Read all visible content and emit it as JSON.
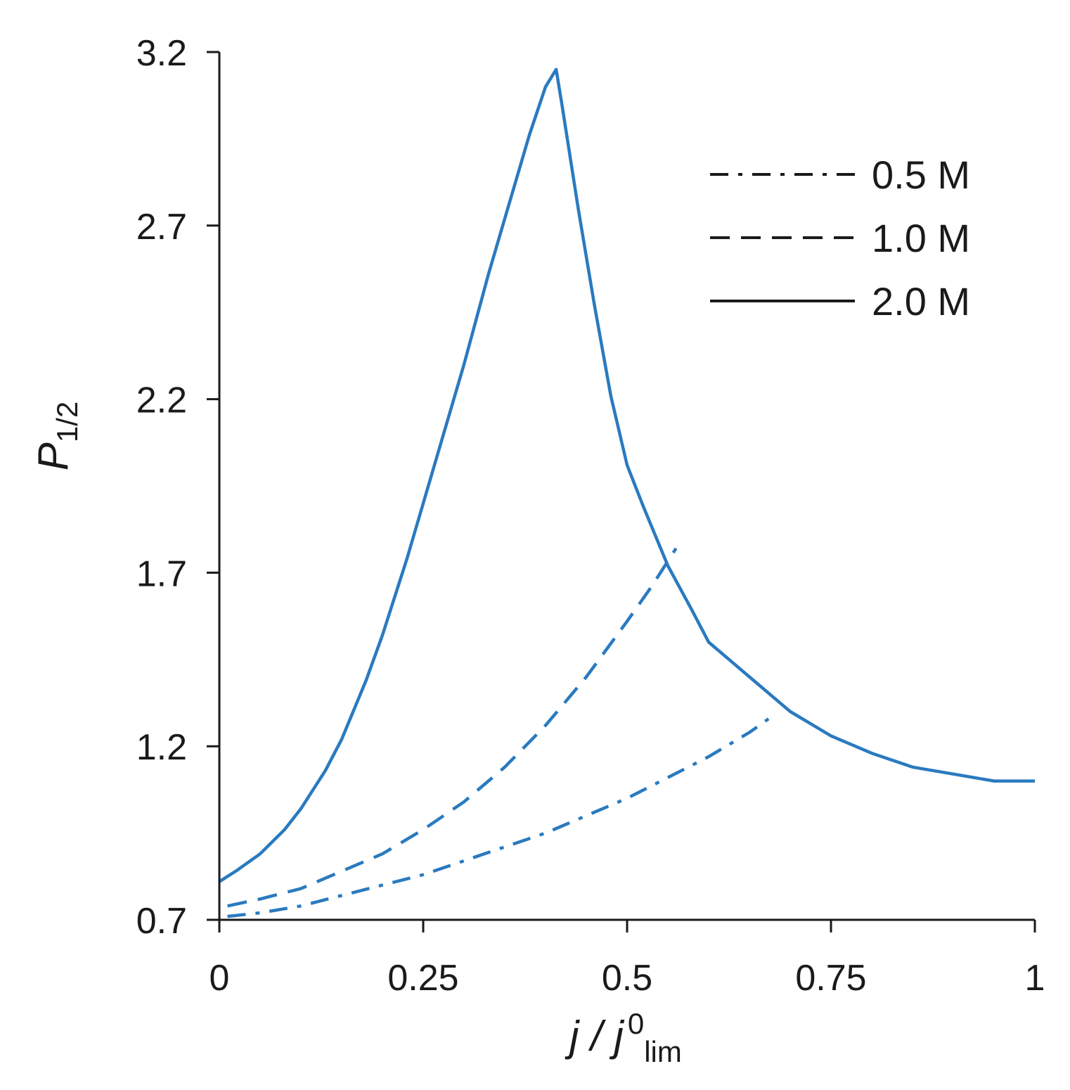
{
  "chart_data": {
    "type": "line",
    "xlabel": {
      "main": "j / j",
      "sup": "0",
      "sub": "lim"
    },
    "ylabel": {
      "main": "P",
      "sub": "1/2"
    },
    "xlim": [
      0,
      1
    ],
    "ylim": [
      0.7,
      3.2
    ],
    "xticks": [
      {
        "value": 0,
        "label": "0"
      },
      {
        "value": 0.25,
        "label": "0.25"
      },
      {
        "value": 0.5,
        "label": "0.5"
      },
      {
        "value": 0.75,
        "label": "0.75"
      },
      {
        "value": 1,
        "label": "1"
      }
    ],
    "yticks": [
      {
        "value": 0.7,
        "label": "0.7"
      },
      {
        "value": 1.2,
        "label": "1.2"
      },
      {
        "value": 1.7,
        "label": "1.7"
      },
      {
        "value": 2.2,
        "label": "2.2"
      },
      {
        "value": 2.7,
        "label": "2.7"
      },
      {
        "value": 3.2,
        "label": "3.2"
      }
    ],
    "grid": false,
    "legend_position": "top-right",
    "series_color": "#2a7abf",
    "legend_line_color": "#1a1a1a",
    "series": [
      {
        "name": "0.5 M",
        "style": "dashdot",
        "x": [
          0.01,
          0.05,
          0.1,
          0.15,
          0.2,
          0.25,
          0.3,
          0.35,
          0.4,
          0.45,
          0.5,
          0.55,
          0.6,
          0.65,
          0.68
        ],
        "y": [
          0.71,
          0.72,
          0.74,
          0.77,
          0.8,
          0.83,
          0.87,
          0.91,
          0.95,
          1.0,
          1.05,
          1.11,
          1.17,
          1.24,
          1.29
        ]
      },
      {
        "name": "1.0 M",
        "style": "dashed",
        "x": [
          0.01,
          0.05,
          0.1,
          0.15,
          0.2,
          0.25,
          0.3,
          0.35,
          0.4,
          0.45,
          0.5,
          0.53,
          0.56
        ],
        "y": [
          0.74,
          0.76,
          0.79,
          0.84,
          0.89,
          0.96,
          1.04,
          1.14,
          1.26,
          1.4,
          1.56,
          1.66,
          1.77
        ]
      },
      {
        "name": "2.0 M",
        "style": "solid",
        "x": [
          0,
          0.02,
          0.05,
          0.08,
          0.1,
          0.13,
          0.15,
          0.18,
          0.2,
          0.23,
          0.25,
          0.28,
          0.3,
          0.33,
          0.35,
          0.38,
          0.4,
          0.413,
          0.42,
          0.44,
          0.46,
          0.48,
          0.5,
          0.52,
          0.55,
          0.58,
          0.6,
          0.65,
          0.7,
          0.75,
          0.8,
          0.85,
          0.9,
          0.95,
          1.0
        ],
        "y": [
          0.81,
          0.84,
          0.89,
          0.96,
          1.02,
          1.13,
          1.22,
          1.39,
          1.52,
          1.74,
          1.9,
          2.14,
          2.3,
          2.56,
          2.72,
          2.96,
          3.1,
          3.15,
          3.05,
          2.75,
          2.47,
          2.21,
          2.01,
          1.89,
          1.72,
          1.59,
          1.5,
          1.4,
          1.3,
          1.23,
          1.18,
          1.14,
          1.12,
          1.1,
          1.1
        ]
      }
    ]
  }
}
